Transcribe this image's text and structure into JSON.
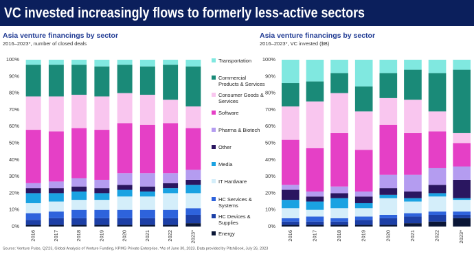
{
  "header": {
    "title": "VC invested increasingly flows to formerly less-active sectors"
  },
  "chart_data": [
    {
      "type": "bar",
      "stacked": true,
      "title": "Asia venture financings by sector",
      "subtitle": "2016–2023*, number of closed deals",
      "categories": [
        "2016",
        "2017",
        "2018",
        "2019",
        "2020",
        "2021",
        "2022",
        "2023*"
      ],
      "ylim": [
        0,
        100
      ],
      "yticks": [
        {
          "value": 0,
          "label": "0%"
        },
        {
          "value": 10,
          "label": "10%"
        },
        {
          "value": 20,
          "label": "20%"
        },
        {
          "value": 30,
          "label": "30%"
        },
        {
          "value": 40,
          "label": "40%"
        },
        {
          "value": 50,
          "label": "50%"
        },
        {
          "value": 60,
          "label": "60%"
        },
        {
          "value": 70,
          "label": "70%"
        },
        {
          "value": 80,
          "label": "80%"
        },
        {
          "value": 90,
          "label": "90%"
        },
        {
          "value": 100,
          "label": "100%"
        }
      ],
      "series": [
        {
          "name": "Energy",
          "color": "#0a1636",
          "values": [
            1,
            1,
            1,
            1,
            1,
            1,
            1,
            2
          ]
        },
        {
          "name": "HC Devices & Supplies",
          "color": "#1c3fa6",
          "values": [
            3,
            4,
            4,
            4,
            4,
            4,
            4,
            5
          ]
        },
        {
          "name": "HC Services & Systems",
          "color": "#2e63dc",
          "values": [
            4,
            4,
            5,
            5,
            5,
            5,
            5,
            4
          ]
        },
        {
          "name": "IT Hardware",
          "color": "#d4eefa",
          "values": [
            6,
            6,
            6,
            6,
            8,
            8,
            10,
            9
          ]
        },
        {
          "name": "Media",
          "color": "#1aa2e2",
          "values": [
            6,
            5,
            5,
            4,
            4,
            3,
            3,
            5
          ]
        },
        {
          "name": "Other",
          "color": "#2a1660",
          "values": [
            3,
            3,
            3,
            3,
            3,
            3,
            3,
            3
          ]
        },
        {
          "name": "Pharma & Biotech",
          "color": "#b49cf0",
          "values": [
            3,
            4,
            5,
            5,
            7,
            8,
            6,
            6
          ]
        },
        {
          "name": "Software",
          "color": "#e540c6",
          "values": [
            32,
            30,
            30,
            30,
            30,
            29,
            30,
            25
          ]
        },
        {
          "name": "Consumer Goods & Services",
          "color": "#f9c6ef",
          "values": [
            20,
            21,
            20,
            20,
            18,
            18,
            14,
            13
          ]
        },
        {
          "name": "Commercial Products & Services",
          "color": "#1a8a78",
          "values": [
            19,
            19,
            18,
            18,
            17,
            17,
            21,
            24
          ]
        },
        {
          "name": "Transportation",
          "color": "#80e8e0",
          "values": [
            3,
            3,
            3,
            4,
            3,
            4,
            3,
            4
          ]
        }
      ]
    },
    {
      "type": "bar",
      "stacked": true,
      "title": "Asia venture financings by sector",
      "subtitle": "2016–2023*, VC invested ($B)",
      "categories": [
        "2016",
        "2017",
        "2018",
        "2019",
        "2020",
        "2021",
        "2022",
        "2023*"
      ],
      "ylim": [
        0,
        100
      ],
      "yticks": [
        {
          "value": 0,
          "label": "0%"
        },
        {
          "value": 10,
          "label": "10%"
        },
        {
          "value": 20,
          "label": "20%"
        },
        {
          "value": 30,
          "label": "30%"
        },
        {
          "value": 40,
          "label": "40%"
        },
        {
          "value": 50,
          "label": "50%"
        },
        {
          "value": 60,
          "label": "60%"
        },
        {
          "value": 70,
          "label": "70%"
        },
        {
          "value": 80,
          "label": "80%"
        },
        {
          "value": 90,
          "label": "90%"
        },
        {
          "value": 100,
          "label": "100%"
        }
      ],
      "series": [
        {
          "color": "#0a1636",
          "values": [
            1,
            1,
            1,
            1,
            1,
            2,
            3,
            5
          ]
        },
        {
          "color": "#1c3fa6",
          "values": [
            2,
            2,
            2,
            3,
            4,
            4,
            4,
            2
          ]
        },
        {
          "color": "#2e63dc",
          "values": [
            2,
            3,
            2,
            2,
            2,
            2,
            2,
            2
          ]
        },
        {
          "color": "#d4eefa",
          "values": [
            6,
            4,
            6,
            5,
            10,
            7,
            9,
            7
          ]
        },
        {
          "color": "#1aa2e2",
          "values": [
            5,
            5,
            6,
            3,
            2,
            2,
            2,
            1
          ]
        },
        {
          "color": "#2a1660",
          "values": [
            6,
            3,
            3,
            4,
            4,
            4,
            5,
            11
          ]
        },
        {
          "color": "#b49cf0",
          "values": [
            3,
            3,
            4,
            3,
            8,
            10,
            10,
            8
          ]
        },
        {
          "color": "#e540c6",
          "values": [
            27,
            26,
            32,
            25,
            30,
            25,
            22,
            14
          ]
        },
        {
          "color": "#f9c6ef",
          "values": [
            20,
            28,
            24,
            23,
            16,
            20,
            12,
            6
          ]
        },
        {
          "color": "#1a8a78",
          "values": [
            14,
            12,
            12,
            15,
            15,
            18,
            23,
            38
          ]
        },
        {
          "color": "#80e8e0",
          "values": [
            14,
            13,
            8,
            16,
            8,
            6,
            8,
            6
          ]
        }
      ]
    }
  ],
  "source": "Source: Venture Pulse, Q2'23, Global Analysis of Venture Funding, KPMG Private Enterprise. *As of June 30, 2023. Data provided by PitchBook, July 26, 2023"
}
